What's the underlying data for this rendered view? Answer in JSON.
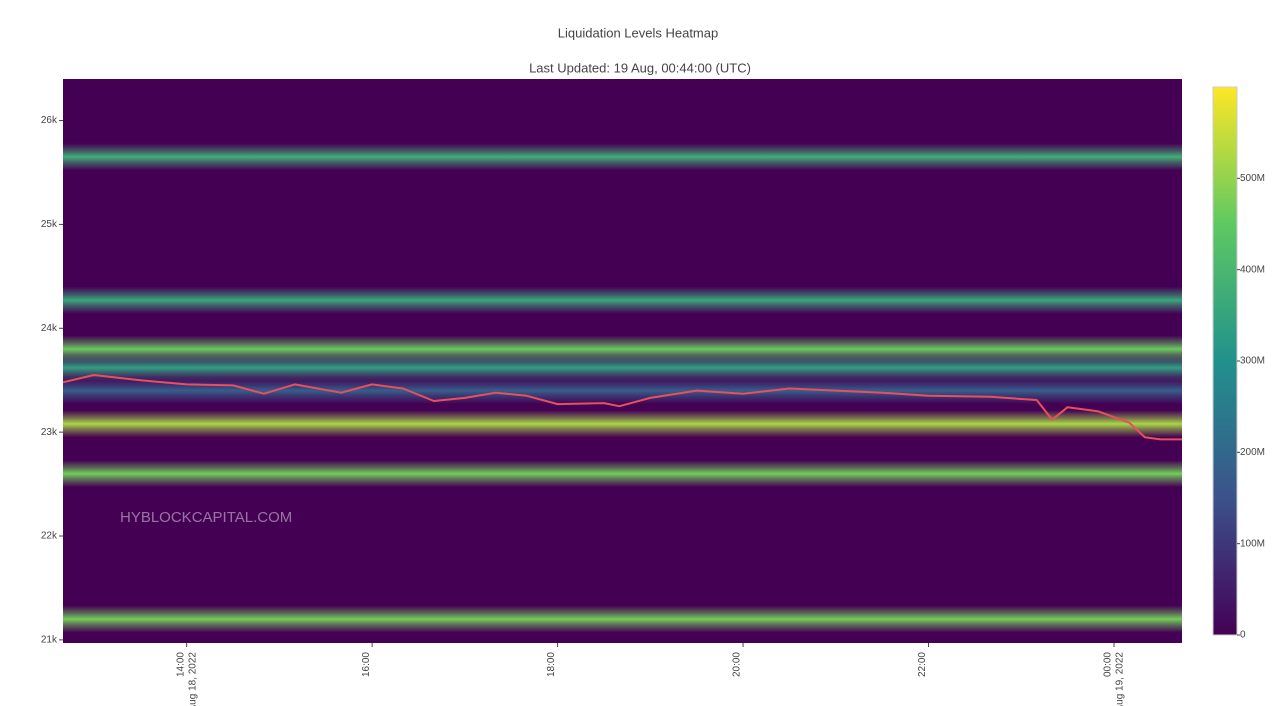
{
  "chart_data": {
    "type": "heatmap",
    "title": "Liquidation Levels Heatmap",
    "subtitle": "Last Updated: 19 Aug, 00:44:00 (UTC)",
    "watermark": "HYBLOCKCAPITAL.COM",
    "xlim": [
      "2022-08-18 12:40",
      "2022-08-19 00:44"
    ],
    "xticks": [
      {
        "value": "2022-08-18 14:00",
        "label": "14:00",
        "date_label": "Aug 18, 2022"
      },
      {
        "value": "2022-08-18 16:00",
        "label": "16:00"
      },
      {
        "value": "2022-08-18 18:00",
        "label": "18:00"
      },
      {
        "value": "2022-08-18 20:00",
        "label": "20:00"
      },
      {
        "value": "2022-08-18 22:00",
        "label": "22:00"
      },
      {
        "value": "2022-08-19 00:00",
        "label": "00:00",
        "date_label": "Aug 19, 2022"
      }
    ],
    "ylim": [
      20970,
      26400
    ],
    "yticks": [
      {
        "value": 21000,
        "label": "21k"
      },
      {
        "value": 22000,
        "label": "22k"
      },
      {
        "value": 23000,
        "label": "23k"
      },
      {
        "value": 24000,
        "label": "24k"
      },
      {
        "value": 25000,
        "label": "25k"
      },
      {
        "value": 26000,
        "label": "26k"
      }
    ],
    "zlim": [
      0,
      600
    ],
    "zticks": [
      0,
      {
        "value": 100,
        "label": "100M"
      },
      {
        "value": 200,
        "label": "200M"
      },
      {
        "value": 300,
        "label": "300M"
      },
      {
        "value": 400,
        "label": "400M"
      },
      {
        "value": 500,
        "label": "500M"
      }
    ],
    "colorscale": [
      "#440154",
      "#3b528b",
      "#21918c",
      "#5ec962",
      "#fde725"
    ],
    "bands": [
      {
        "y": 25650,
        "z": 380
      },
      {
        "y": 24270,
        "z": 360
      },
      {
        "y": 23800,
        "z": 460
      },
      {
        "y": 23620,
        "z": 340
      },
      {
        "y": 23400,
        "z": 180
      },
      {
        "y": 23080,
        "z": 520
      },
      {
        "y": 22600,
        "z": 470
      },
      {
        "y": 21200,
        "z": 470
      }
    ],
    "price": {
      "name": "Price",
      "color": "#e8505b",
      "x": [
        "2022-08-18 12:40",
        "2022-08-18 13:00",
        "2022-08-18 13:30",
        "2022-08-18 14:00",
        "2022-08-18 14:30",
        "2022-08-18 14:50",
        "2022-08-18 15:10",
        "2022-08-18 15:40",
        "2022-08-18 16:00",
        "2022-08-18 16:20",
        "2022-08-18 16:40",
        "2022-08-18 17:00",
        "2022-08-18 17:20",
        "2022-08-18 17:40",
        "2022-08-18 18:00",
        "2022-08-18 18:30",
        "2022-08-18 18:40",
        "2022-08-18 19:00",
        "2022-08-18 19:30",
        "2022-08-18 20:00",
        "2022-08-18 20:30",
        "2022-08-18 21:00",
        "2022-08-18 21:30",
        "2022-08-18 22:00",
        "2022-08-18 22:40",
        "2022-08-18 23:10",
        "2022-08-18 23:20",
        "2022-08-18 23:30",
        "2022-08-18 23:50",
        "2022-08-19 00:10",
        "2022-08-19 00:20",
        "2022-08-19 00:30",
        "2022-08-19 00:44"
      ],
      "values": [
        23480,
        23550,
        23500,
        23460,
        23450,
        23370,
        23460,
        23380,
        23460,
        23420,
        23300,
        23330,
        23380,
        23350,
        23270,
        23280,
        23250,
        23330,
        23400,
        23370,
        23420,
        23400,
        23380,
        23350,
        23340,
        23310,
        23120,
        23240,
        23200,
        23090,
        22950,
        22930,
        22930
      ]
    }
  }
}
